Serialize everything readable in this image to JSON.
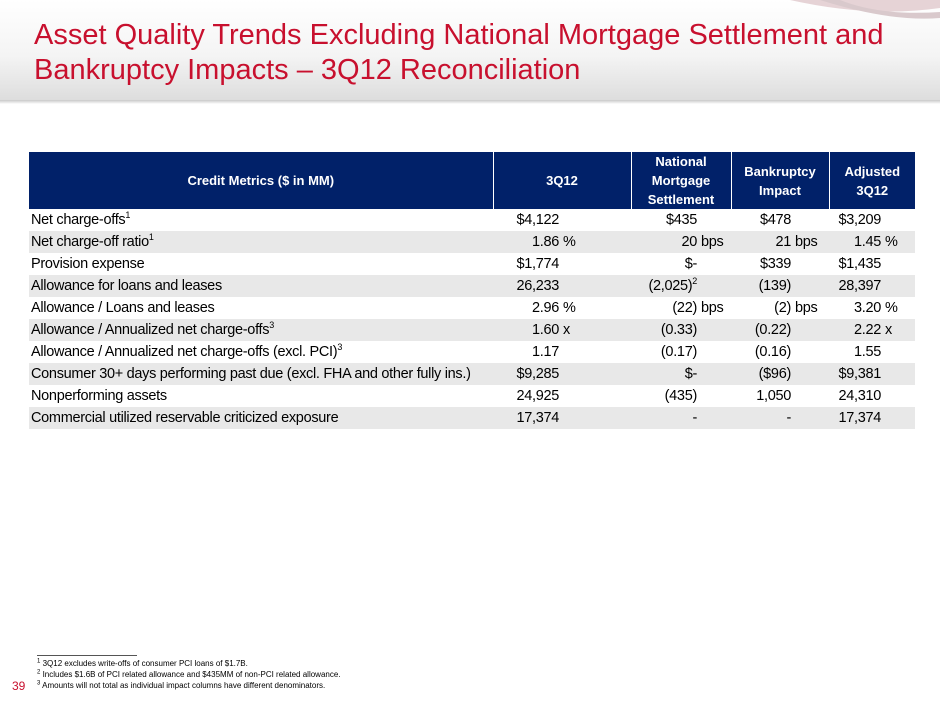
{
  "slide": {
    "title": "Asset Quality Trends Excluding National Mortgage Settlement and Bankruptcy Impacts – 3Q12 Reconciliation",
    "page_number": "39",
    "accent_color": "#c8102e",
    "header_color": "#012169"
  },
  "table": {
    "headers": {
      "metric": "Credit Metrics ($ in MM)",
      "q3": "3Q12",
      "nms": "National Mortgage Settlement",
      "bankruptcy": "Bankruptcy Impact",
      "adjusted": "Adjusted 3Q12"
    },
    "rows": [
      {
        "label": "Net charge-offs",
        "sup": "1",
        "q3": "$4,122",
        "q3_unit": "",
        "nms": "$435",
        "nms_sup": "",
        "nms_unit": "",
        "bk": "$478",
        "bk_unit": "",
        "adj": "$3,209",
        "adj_unit": ""
      },
      {
        "label": "Net charge-off ratio",
        "sup": "1",
        "q3": "1.86",
        "q3_unit": "%",
        "nms": "20",
        "nms_sup": "",
        "nms_unit": "bps",
        "bk": "21",
        "bk_unit": "bps",
        "adj": "1.45",
        "adj_unit": "%"
      },
      {
        "label": "Provision expense",
        "sup": "",
        "q3": "$1,774",
        "q3_unit": "",
        "nms": "$-",
        "nms_sup": "",
        "nms_unit": "",
        "bk": "$339",
        "bk_unit": "",
        "adj": "$1,435",
        "adj_unit": ""
      },
      {
        "label": "Allowance for loans and leases",
        "sup": "",
        "q3": "26,233",
        "q3_unit": "",
        "nms": "(2,025)",
        "nms_sup": "2",
        "nms_unit": "",
        "bk": "(139)",
        "bk_unit": "",
        "adj": "28,397",
        "adj_unit": ""
      },
      {
        "label": "Allowance / Loans and leases",
        "sup": "",
        "q3": "2.96",
        "q3_unit": "%",
        "nms": "(22)",
        "nms_sup": "",
        "nms_unit": "bps",
        "bk": "(2)",
        "bk_unit": "bps",
        "adj": "3.20",
        "adj_unit": "%"
      },
      {
        "label": "Allowance / Annualized net charge-offs",
        "sup": "3",
        "q3": "1.60",
        "q3_unit": "x",
        "nms": "(0.33)",
        "nms_sup": "",
        "nms_unit": "",
        "bk": "(0.22)",
        "bk_unit": "",
        "adj": "2.22",
        "adj_unit": "x"
      },
      {
        "label": "Allowance / Annualized net charge-offs (excl. PCI)",
        "sup": "3",
        "q3": "1.17",
        "q3_unit": "",
        "nms": "(0.17)",
        "nms_sup": "",
        "nms_unit": "",
        "bk": "(0.16)",
        "bk_unit": "",
        "adj": "1.55",
        "adj_unit": ""
      },
      {
        "label": "Consumer 30+ days performing past due (excl. FHA and other fully ins.)",
        "sup": "",
        "q3": "$9,285",
        "q3_unit": "",
        "nms": "$-",
        "nms_sup": "",
        "nms_unit": "",
        "bk": "($96)",
        "bk_unit": "",
        "adj": "$9,381",
        "adj_unit": ""
      },
      {
        "label": "Nonperforming assets",
        "sup": "",
        "q3": "24,925",
        "q3_unit": "",
        "nms": "(435)",
        "nms_sup": "",
        "nms_unit": "",
        "bk": "1,050",
        "bk_unit": "",
        "adj": "24,310",
        "adj_unit": ""
      },
      {
        "label": "Commercial utilized reservable criticized exposure",
        "sup": "",
        "q3": "17,374",
        "q3_unit": "",
        "nms": "-",
        "nms_sup": "",
        "nms_unit": "",
        "bk": "-",
        "bk_unit": "",
        "adj": "17,374",
        "adj_unit": ""
      }
    ]
  },
  "footnotes": [
    {
      "num": "1",
      "text": "3Q12 excludes write-offs of consumer PCI loans of $1.7B."
    },
    {
      "num": "2",
      "text": "Includes $1.6B of PCI related allowance and $435MM of non-PCI related allowance."
    },
    {
      "num": "3",
      "text": "Amounts will not total as individual impact columns have different denominators."
    }
  ]
}
